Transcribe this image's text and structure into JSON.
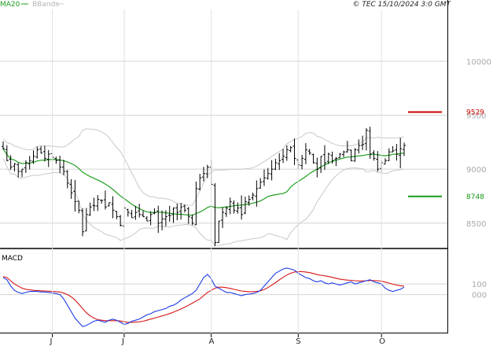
{
  "header": {
    "legend": [
      {
        "label": "MA20",
        "color": "#1e9e1e"
      },
      {
        "label": "BBands",
        "color": "#b4b4b4"
      }
    ],
    "copyright": "© TEC 15/10/2024 3:0 GMT"
  },
  "chart_data": [
    {
      "type": "ohlc",
      "panel": "price",
      "y_ticks": [
        {
          "label": "10000",
          "value": 10000
        },
        {
          "label": "9500",
          "value": 9500
        },
        {
          "label": "9000",
          "value": 9000
        },
        {
          "label": "8500",
          "value": 8500
        }
      ],
      "ylim": [
        8280,
        10480
      ],
      "x_ticks": [
        {
          "label": "J",
          "index": 13
        },
        {
          "label": "J",
          "index": 32
        },
        {
          "label": "A",
          "index": 55
        },
        {
          "label": "S",
          "index": 78
        },
        {
          "label": "O",
          "index": 100
        }
      ],
      "n_bars": 107,
      "series": [
        {
          "name": "Price",
          "color": "#000000"
        },
        {
          "name": "MA20",
          "color": "#1e9e1e"
        },
        {
          "name": "BBands",
          "color": "#c8c8c8"
        }
      ],
      "closes": [
        9190,
        9080,
        9020,
        9050,
        8980,
        9000,
        9060,
        9080,
        9120,
        9180,
        9150,
        9100,
        9140,
        9110,
        9080,
        9020,
        8980,
        8870,
        8780,
        8700,
        8620,
        8420,
        8580,
        8650,
        8660,
        8720,
        8710,
        8650,
        8690,
        8620,
        8560,
        8480,
        8640,
        8600,
        8550,
        8600,
        8580,
        8560,
        8520,
        8580,
        8600,
        8500,
        8540,
        8560,
        8570,
        8640,
        8600,
        8650,
        8620,
        8560,
        8500,
        8820,
        8920,
        8960,
        9020,
        8860,
        8320,
        8520,
        8600,
        8640,
        8700,
        8620,
        8640,
        8580,
        8700,
        8720,
        8760,
        8820,
        8880,
        8920,
        8960,
        9000,
        9060,
        9080,
        9120,
        9180,
        9200,
        9100,
        9040,
        9100,
        9180,
        9150,
        9060,
        9000,
        9120,
        9060,
        9140,
        9080,
        9100,
        9140,
        9160,
        9180,
        9080,
        9180,
        9220,
        9230,
        9360,
        9140,
        9100,
        9000,
        9060,
        9080,
        9160,
        9170,
        9140,
        9190,
        9220
      ],
      "annotations": [
        {
          "label": "9529",
          "value": 9529,
          "color": "#cc0000"
        },
        {
          "label": "8748",
          "value": 8748,
          "color": "#1a9a1a"
        }
      ]
    },
    {
      "type": "line",
      "panel": "macd",
      "title": "MACD",
      "y_ticks": [
        {
          "label": "100",
          "value": 100
        },
        {
          "label": "000",
          "value": 0
        }
      ],
      "ylim": [
        -320,
        300
      ],
      "series": [
        {
          "name": "MACD",
          "color": "#1e3ce6",
          "values": [
            160,
            140,
            80,
            40,
            20,
            10,
            20,
            30,
            30,
            30,
            25,
            25,
            20,
            15,
            10,
            0,
            -40,
            -100,
            -160,
            -220,
            -260,
            -300,
            -290,
            -270,
            -250,
            -240,
            -250,
            -260,
            -240,
            -230,
            -240,
            -260,
            -280,
            -270,
            -250,
            -240,
            -230,
            -210,
            -190,
            -180,
            -160,
            -150,
            -140,
            -130,
            -110,
            -100,
            -80,
            -50,
            -30,
            -10,
            10,
            40,
            100,
            160,
            190,
            150,
            80,
            60,
            40,
            20,
            20,
            10,
            0,
            -10,
            0,
            5,
            10,
            20,
            40,
            80,
            120,
            160,
            200,
            220,
            240,
            250,
            240,
            230,
            200,
            180,
            160,
            150,
            130,
            120,
            130,
            110,
            100,
            110,
            100,
            90,
            100,
            110,
            120,
            100,
            110,
            120,
            130,
            140,
            120,
            110,
            100,
            60,
            40,
            30,
            40,
            50,
            70
          ]
        },
        {
          "name": "Signal",
          "color": "#d61414",
          "values": [
            170,
            160,
            130,
            100,
            80,
            60,
            50,
            45,
            40,
            38,
            36,
            34,
            32,
            30,
            28,
            25,
            15,
            0,
            -20,
            -50,
            -90,
            -130,
            -170,
            -200,
            -220,
            -235,
            -240,
            -245,
            -245,
            -245,
            -245,
            -248,
            -255,
            -260,
            -260,
            -258,
            -255,
            -250,
            -240,
            -230,
            -220,
            -210,
            -200,
            -190,
            -178,
            -165,
            -150,
            -135,
            -118,
            -100,
            -80,
            -60,
            -40,
            -10,
            20,
            40,
            60,
            70,
            70,
            65,
            58,
            50,
            42,
            34,
            30,
            28,
            28,
            30,
            36,
            48,
            66,
            88,
            112,
            138,
            162,
            184,
            200,
            212,
            216,
            216,
            212,
            206,
            198,
            188,
            182,
            176,
            170,
            162,
            154,
            146,
            140,
            136,
            134,
            130,
            128,
            128,
            130,
            132,
            132,
            130,
            126,
            118,
            108,
            98,
            90,
            84,
            80
          ]
        }
      ]
    }
  ]
}
